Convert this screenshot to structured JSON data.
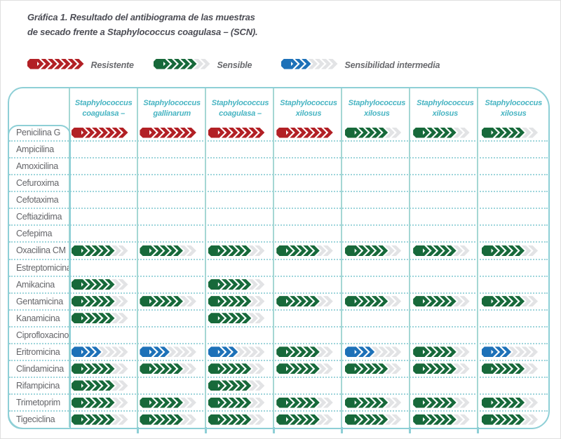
{
  "title": {
    "line1": "Gráfica 1. Resultado del antibiograma de las muestras",
    "line2": "de secado frente a Staphylococcus coagulasa – (SCN)."
  },
  "legend": {
    "items": [
      {
        "code": "R",
        "label": "Resistente"
      },
      {
        "code": "S",
        "label": "Sensible"
      },
      {
        "code": "I",
        "label": "Sensibilidad intermedia"
      }
    ]
  },
  "colors": {
    "resistente": "#b22025",
    "sensible": "#17693a",
    "intermedia": "#1d71b8",
    "empty_arrow": "#e2e3e5",
    "table_border": "#8ecfd6",
    "header_text": "#47b4c2",
    "label_text": "#646569",
    "title_text": "#4c4d55"
  },
  "chart_data": {
    "type": "table",
    "title": "Gráfica 1. Resultado del antibiograma de las muestras de secado frente a Staphylococcus coagulasa – (SCN).",
    "legend": {
      "R": "Resistente",
      "S": "Sensible",
      "I": "Sensibilidad intermedia"
    },
    "marker_segments": {
      "total": 8,
      "R_filled": 8,
      "S_filled": 6,
      "I_filled": 4
    },
    "columns": [
      {
        "genus": "Staphylococcus",
        "species": "coagulasa –"
      },
      {
        "genus": "Staphylococcus",
        "species": "gallinarum"
      },
      {
        "genus": "Staphylococcus",
        "species": "coagulasa –"
      },
      {
        "genus": "Staphylococcus",
        "species": "xilosus"
      },
      {
        "genus": "Staphylococcus",
        "species": "xilosus"
      },
      {
        "genus": "Staphylococcus",
        "species": "xilosus"
      },
      {
        "genus": "Staphylococcus",
        "species": "xilosus"
      }
    ],
    "rows": [
      {
        "antibiotic": "Penicilina G",
        "results": [
          "R",
          "R",
          "R",
          "R",
          "S",
          "S",
          "S"
        ]
      },
      {
        "antibiotic": "Ampicilina",
        "results": [
          "",
          "",
          "",
          "",
          "",
          "",
          ""
        ]
      },
      {
        "antibiotic": "Amoxicilina",
        "results": [
          "",
          "",
          "",
          "",
          "",
          "",
          ""
        ]
      },
      {
        "antibiotic": "Cefuroxima",
        "results": [
          "",
          "",
          "",
          "",
          "",
          "",
          ""
        ]
      },
      {
        "antibiotic": "Cefotaxima",
        "results": [
          "",
          "",
          "",
          "",
          "",
          "",
          ""
        ]
      },
      {
        "antibiotic": "Ceftiazidima",
        "results": [
          "",
          "",
          "",
          "",
          "",
          "",
          ""
        ]
      },
      {
        "antibiotic": "Cefepima",
        "results": [
          "",
          "",
          "",
          "",
          "",
          "",
          ""
        ]
      },
      {
        "antibiotic": "Oxacilina CM",
        "results": [
          "S",
          "S",
          "S",
          "S",
          "S",
          "S",
          "S"
        ]
      },
      {
        "antibiotic": "Estreptomicina",
        "results": [
          "",
          "",
          "",
          "",
          "",
          "",
          ""
        ]
      },
      {
        "antibiotic": "Amikacina",
        "results": [
          "S",
          "",
          "S",
          "",
          "",
          "",
          ""
        ]
      },
      {
        "antibiotic": "Gentamicina",
        "results": [
          "S",
          "S",
          "S",
          "S",
          "S",
          "S",
          "S"
        ]
      },
      {
        "antibiotic": "Kanamicina",
        "results": [
          "S",
          "",
          "S",
          "",
          "",
          "",
          ""
        ]
      },
      {
        "antibiotic": "Ciprofloxacino",
        "results": [
          "",
          "",
          "",
          "",
          "",
          "",
          ""
        ]
      },
      {
        "antibiotic": "Eritromicina",
        "results": [
          "I",
          "I",
          "I",
          "S",
          "I",
          "S",
          "I"
        ]
      },
      {
        "antibiotic": "Clindamicina",
        "results": [
          "S",
          "S",
          "S",
          "S",
          "S",
          "S",
          "S"
        ]
      },
      {
        "antibiotic": "Rifampicina",
        "results": [
          "S",
          "",
          "S",
          "",
          "",
          "",
          ""
        ]
      },
      {
        "antibiotic": "Trimetoprim",
        "results": [
          "S",
          "S",
          "S",
          "S",
          "S",
          "S",
          "S"
        ]
      },
      {
        "antibiotic": "Tigeciclina",
        "results": [
          "S",
          "S",
          "S",
          "S",
          "S",
          "S",
          "S"
        ]
      }
    ]
  }
}
